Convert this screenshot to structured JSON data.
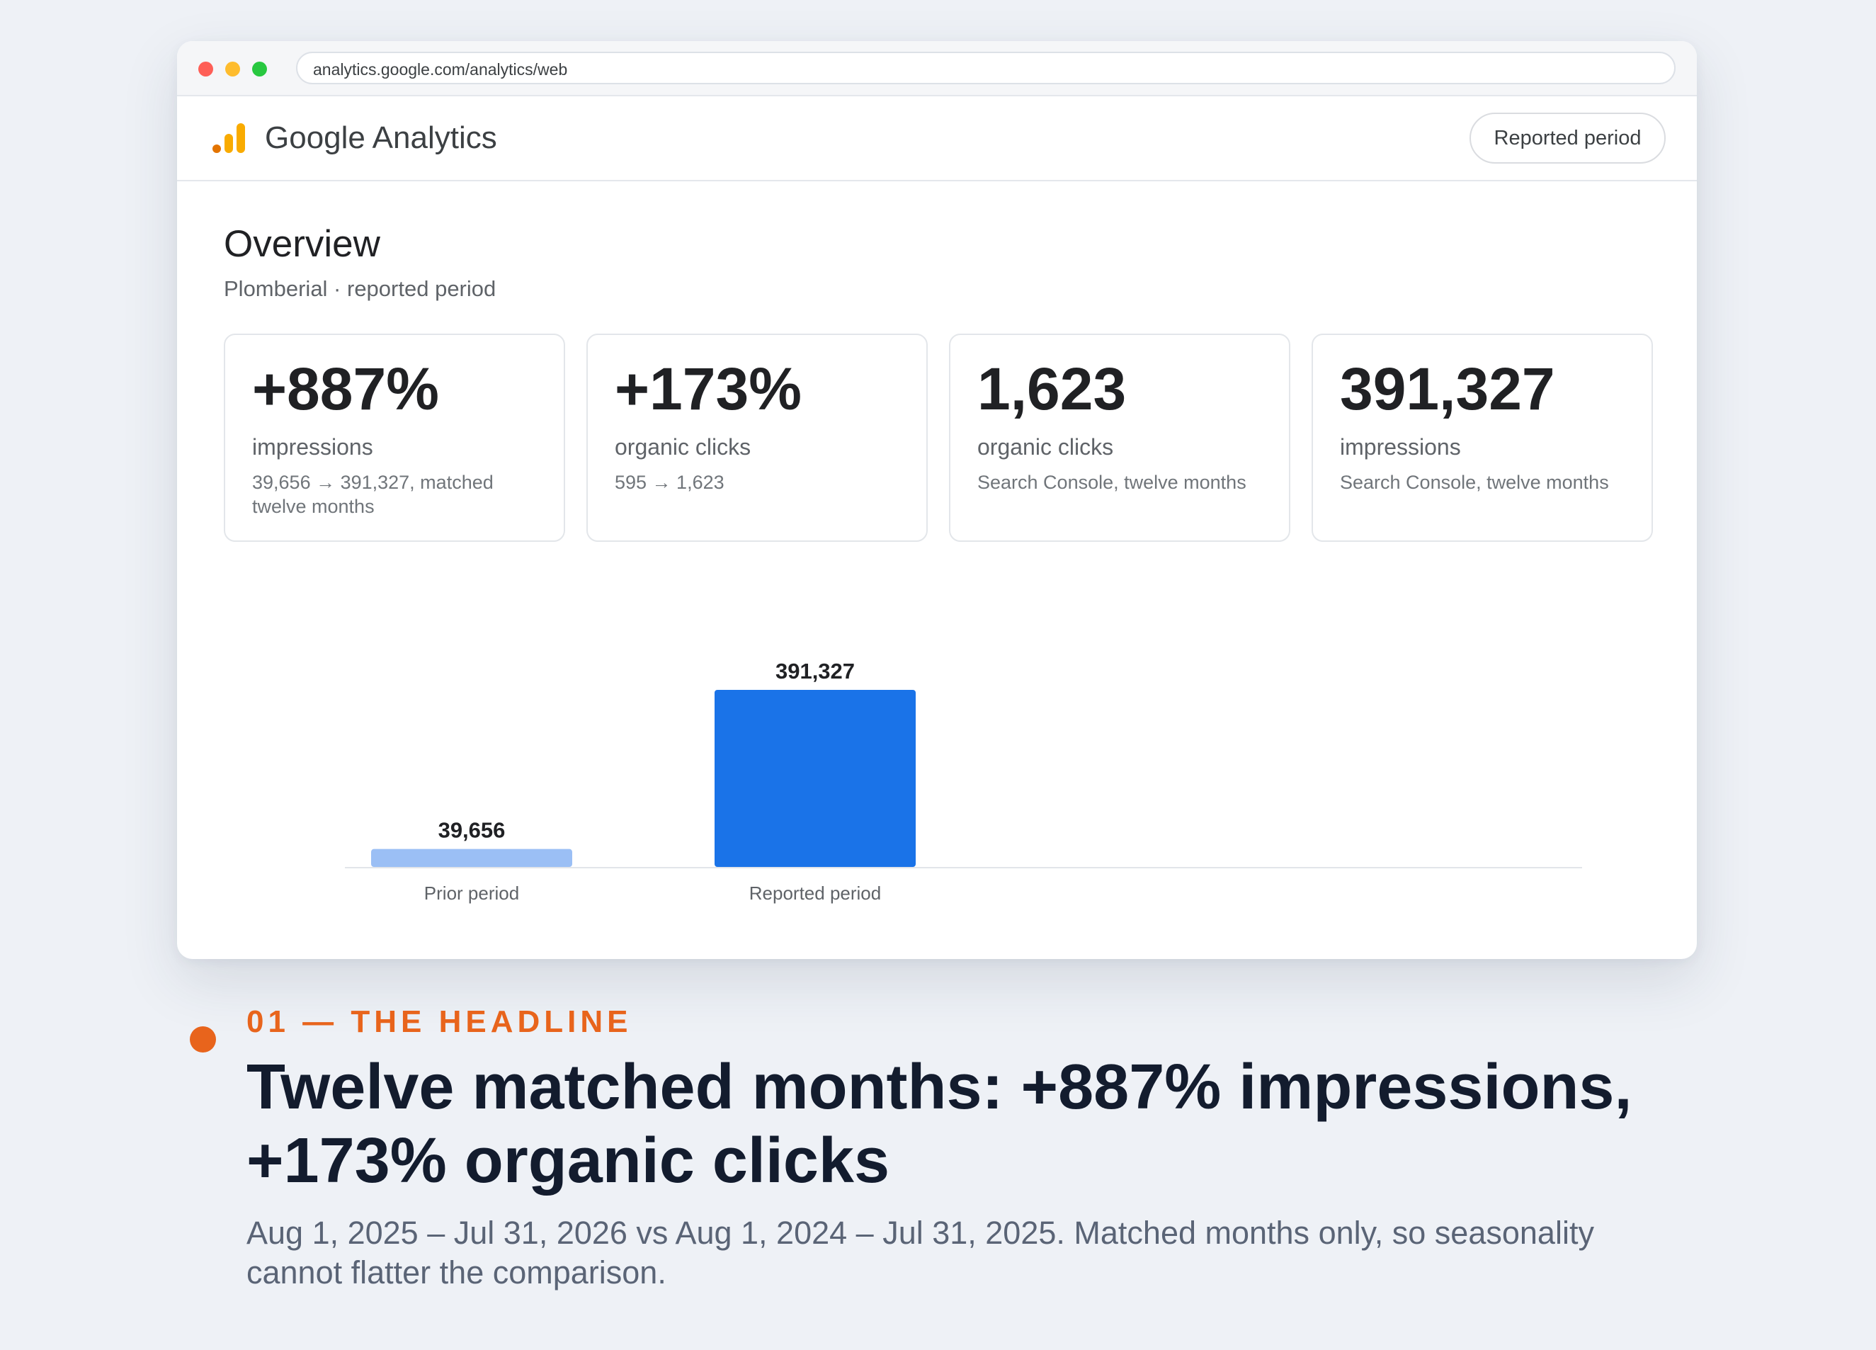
{
  "browser": {
    "url": "analytics.google.com/analytics/web"
  },
  "app": {
    "name": "Google Analytics",
    "period_button": "Reported period"
  },
  "overview": {
    "title": "Overview",
    "subtitle": "Plomberial · reported period"
  },
  "cards": [
    {
      "value": "+887%",
      "label": "impressions",
      "note": "39,656 → 391,327, matched twelve months"
    },
    {
      "value": "+173%",
      "label": "organic clicks",
      "note": "595 → 1,623"
    },
    {
      "value": "1,623",
      "label": "organic clicks",
      "note": "Search Console, twelve months"
    },
    {
      "value": "391,327",
      "label": "impressions",
      "note": "Search Console, twelve months"
    }
  ],
  "colors": {
    "prior_bar": "#9bbff5",
    "reported_bar": "#1a73e8",
    "accent": "#e8641c"
  },
  "chart_data": {
    "type": "bar",
    "categories": [
      "Prior period",
      "Reported period"
    ],
    "values": [
      39656,
      391327
    ],
    "value_labels": [
      "39,656",
      "391,327"
    ],
    "ylim": [
      0,
      391327
    ],
    "grid": false,
    "legend": "none"
  },
  "caption": {
    "kicker": "01 — THE HEADLINE",
    "headline": "Twelve matched months: +887% impressions, +173% organic clicks",
    "body": "Aug 1, 2025 – Jul 31, 2026 vs Aug 1, 2024 – Jul 31, 2025. Matched months only, so seasonality cannot flatter the comparison."
  }
}
